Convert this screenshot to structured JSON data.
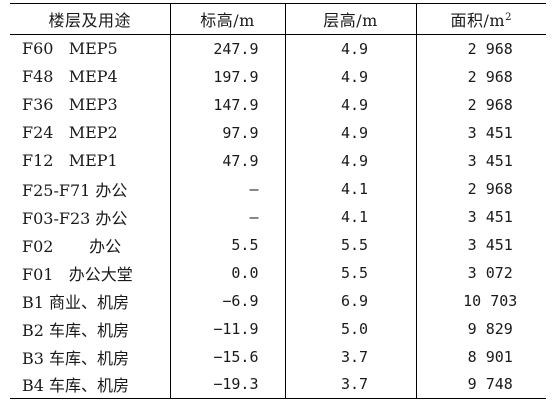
{
  "table": {
    "headers": {
      "floor_use": "楼层及用途",
      "elevation": "标高/m",
      "story_height": "层高/m",
      "area_base": "面积/m",
      "area_exp": "2"
    },
    "rows": [
      {
        "floor": "F60   MEP5",
        "elevation": "247.9",
        "story_height": "4.9",
        "area": "2 968"
      },
      {
        "floor": "F48   MEP4",
        "elevation": "197.9",
        "story_height": "4.9",
        "area": "2 968"
      },
      {
        "floor": "F36   MEP3",
        "elevation": "147.9",
        "story_height": "4.9",
        "area": "2 968"
      },
      {
        "floor": "F24   MEP2",
        "elevation": "97.9",
        "story_height": "4.9",
        "area": "3 451"
      },
      {
        "floor": "F12   MEP1",
        "elevation": "47.9",
        "story_height": "4.9",
        "area": "3 451"
      },
      {
        "floor": "F25-F71 办公",
        "elevation": "—",
        "story_height": "4.1",
        "area": "2 968"
      },
      {
        "floor": "F03-F23 办公",
        "elevation": "—",
        "story_height": "4.1",
        "area": "3 451"
      },
      {
        "floor": "F02       办公",
        "elevation": "5.5",
        "story_height": "5.5",
        "area": "3 451"
      },
      {
        "floor": "F01   办公大堂",
        "elevation": "0.0",
        "story_height": "5.5",
        "area": "3 072"
      },
      {
        "floor": "B1 商业、机房",
        "elevation": "−6.9",
        "story_height": "6.9",
        "area": "10 703"
      },
      {
        "floor": "B2 车库、机房",
        "elevation": "−11.9",
        "story_height": "5.0",
        "area": "9 829"
      },
      {
        "floor": "B3 车库、机房",
        "elevation": "−15.6",
        "story_height": "3.7",
        "area": "8 901"
      },
      {
        "floor": "B4 车库、机房",
        "elevation": "−19.3",
        "story_height": "3.7",
        "area": "9 748"
      }
    ]
  }
}
